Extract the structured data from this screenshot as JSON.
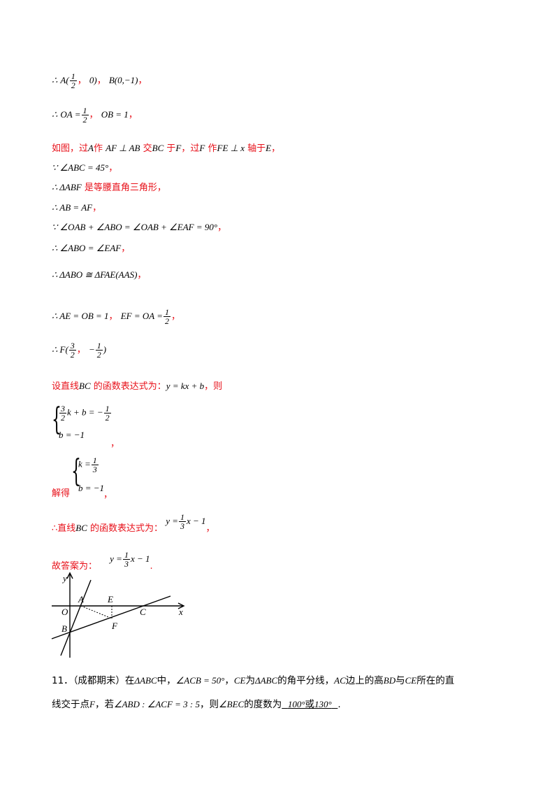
{
  "lines": {
    "l1": {
      "therefore": "∴",
      "a": "A(",
      "a_num": "1",
      "a_den": "2",
      "a_end": "0)",
      "b": "B(0,−1)",
      "comma": "，"
    },
    "l2": {
      "therefore": "∴",
      "oa": "OA =",
      "oa_num": "1",
      "oa_den": "2",
      "ob": "OB = 1",
      "comma": "，"
    },
    "l3": {
      "t1": "如图，过",
      "v1": "A",
      "t2": "作",
      "v2": "AF ⊥ AB",
      "t3": "交",
      "v3": "BC",
      "t4": "于",
      "v4": "F",
      "t5": "，过",
      "v5": "F",
      "t6": "作",
      "v6": "FE ⊥ x",
      "t7": "轴于",
      "v7": "E",
      "t8": "，"
    },
    "l4": {
      "text": "∵ ∠ABC = 45°",
      "comma": "，"
    },
    "l5": {
      "math": "∴ ΔABF",
      "text": "是等腰直角三角形，"
    },
    "l6": {
      "text": "∴ AB = AF",
      "comma": "，"
    },
    "l7": {
      "text": "∵ ∠OAB + ∠ABO = ∠OAB + ∠EAF = 90°",
      "comma": "，"
    },
    "l8": {
      "text": "∴ ∠ABO = ∠EAF",
      "comma": "，"
    },
    "l9": {
      "text": "∴ ΔABO ≅ ΔFAE(AAS)",
      "comma": "，"
    },
    "l10": {
      "t1": "∴ AE = OB = 1",
      "comma1": "，",
      "t2": "EF = OA =",
      "num": "1",
      "den": "2",
      "comma2": "，"
    },
    "l11": {
      "t1": "∴ F(",
      "n1": "3",
      "d1": "2",
      "comma": "，",
      "minus": "−",
      "n2": "1",
      "d2": "2",
      "end": ")"
    },
    "l12": {
      "t1": "设直线",
      "v1": "BC",
      "t2": "的函数表达式为：",
      "v2": "y = kx + b",
      "t3": "，则"
    },
    "sys1": {
      "r1_n": "3",
      "r1_d": "2",
      "r1_a": "k + b = −",
      "r1_n2": "1",
      "r1_d2": "2",
      "r2": "b = −1",
      "comma": "，"
    },
    "sys2": {
      "label": "解得",
      "r1_a": "k =",
      "r1_n": "1",
      "r1_d": "3",
      "r2": "b = −1",
      "comma": "，"
    },
    "l13": {
      "t1": "∴直线",
      "v1": "BC",
      "t2": "的函数表达式为：",
      "v2a": "y =",
      "n": "1",
      "d": "3",
      "v2b": "x − 1",
      "comma": "，"
    },
    "l14": {
      "t1": "故答案为：",
      "v2a": "y =",
      "n": "1",
      "d": "3",
      "v2b": "x − 1",
      "end": "."
    }
  },
  "figure": {
    "labels": {
      "y": "y",
      "x": "x",
      "o": "O",
      "a": "A",
      "b": "B",
      "e": "E",
      "f": "F",
      "c": "C"
    }
  },
  "question": {
    "line1": {
      "num": "11．",
      "src": "（成都期末）在",
      "m1": "ΔABC",
      "t1": "中，",
      "m2": "∠ACB = 50°",
      "t2": "，",
      "m3": "CE",
      "t3": "为",
      "m4": "ΔABC",
      "t4": "的角平分线，",
      "m5": "AC",
      "t5": "边上的高",
      "m6": "BD",
      "t6": "与",
      "m7": "CE",
      "t7": "所在的直"
    },
    "line2": {
      "t1": "线交于点",
      "m1": "F",
      "t2": "，若",
      "m2": "∠ABD : ∠ACF = 3 : 5",
      "t3": "，则",
      "m3": "∠BEC",
      "t4": "的度数为",
      "a1": "100°",
      "or": "或",
      "a2": "130°",
      "end": "."
    }
  }
}
